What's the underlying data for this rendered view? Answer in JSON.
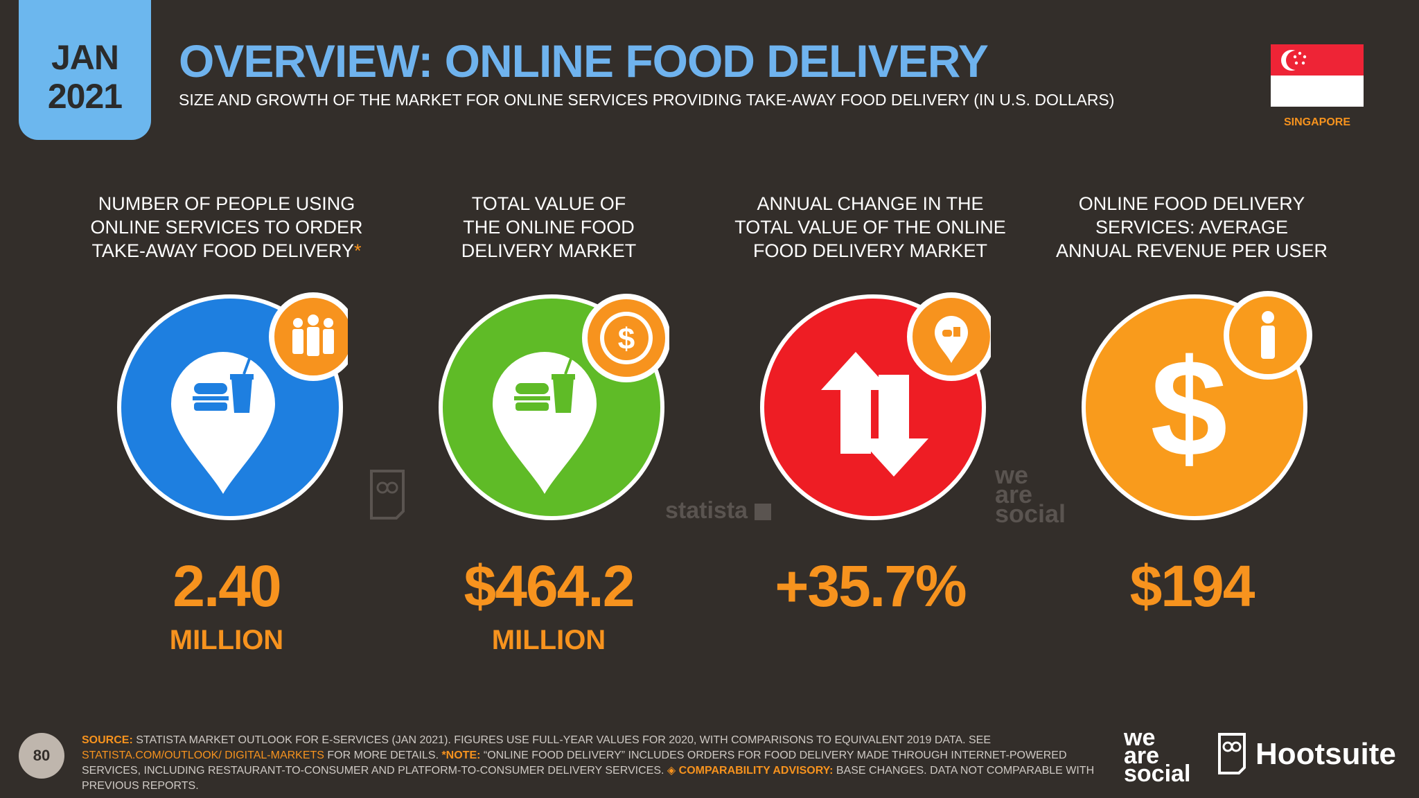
{
  "header": {
    "month": "JAN",
    "year": "2021",
    "title": "OVERVIEW: ONLINE FOOD DELIVERY",
    "subtitle": "SIZE AND GROWTH OF THE MARKET FOR ONLINE SERVICES PROVIDING TAKE-AWAY FOOD DELIVERY (IN U.S. DOLLARS)",
    "country": "SINGAPORE"
  },
  "stats": [
    {
      "label_lines": [
        "NUMBER OF PEOPLE USING",
        "ONLINE SERVICES TO ORDER",
        "TAKE-AWAY FOOD DELIVERY"
      ],
      "label_star": "*",
      "value": "2.40",
      "unit": "MILLION",
      "color": "#1e7fe0",
      "icon": "food-location-pin-icon",
      "badge_icon": "people-icon"
    },
    {
      "label_lines": [
        "TOTAL VALUE OF",
        "THE ONLINE FOOD",
        "DELIVERY MARKET"
      ],
      "value": "$464.2",
      "unit": "MILLION",
      "color": "#5fbb27",
      "icon": "food-location-pin-icon",
      "badge_icon": "dollar-seal-icon"
    },
    {
      "label_lines": [
        "ANNUAL CHANGE IN THE",
        "TOTAL VALUE OF THE ONLINE",
        "FOOD DELIVERY MARKET"
      ],
      "value": "+35.7%",
      "unit": "",
      "color": "#ee1d24",
      "icon": "up-down-arrows-icon",
      "badge_icon": "food-pin-icon"
    },
    {
      "label_lines": [
        "ONLINE FOOD DELIVERY",
        "SERVICES: AVERAGE",
        "ANNUAL REVENUE PER USER"
      ],
      "value": "$194",
      "unit": "",
      "color": "#f99b1c",
      "icon": "dollar-icon",
      "badge_icon": "person-icon"
    }
  ],
  "watermarks": {
    "statista": "statista",
    "wearesocial": [
      "we",
      "are",
      "social"
    ]
  },
  "footer": {
    "source_label": "SOURCE:",
    "source_text": " STATISTA MARKET OUTLOOK FOR E-SERVICES (JAN 2021). FIGURES USE FULL-YEAR VALUES FOR 2020, WITH COMPARISONS TO EQUIVALENT 2019 DATA. SEE ",
    "link": "STATISTA.COM/OUTLOOK/ DIGITAL-MARKETS",
    "more": " FOR MORE DETAILS. ",
    "note_label": "*NOTE:",
    "note_text": " “ONLINE FOOD DELIVERY” INCLUDES ORDERS FOR FOOD DELIVERY MADE THROUGH INTERNET-POWERED SERVICES, INCLUDING RESTAURANT-TO-CONSUMER AND PLATFORM-TO-CONSUMER DELIVERY SERVICES. ",
    "advisory_label": "◈ COMPARABILITY ADVISORY:",
    "advisory_text": " BASE CHANGES. DATA NOT COMPARABLE WITH PREVIOUS REPORTS.",
    "page_number": "80"
  },
  "logos": {
    "we_are_social": [
      "we",
      "are",
      "social"
    ],
    "hootsuite": "Hootsuite"
  },
  "colors": {
    "background": "#332e2a",
    "accent_blue": "#6fb3ee",
    "accent_orange": "#f7931e"
  }
}
